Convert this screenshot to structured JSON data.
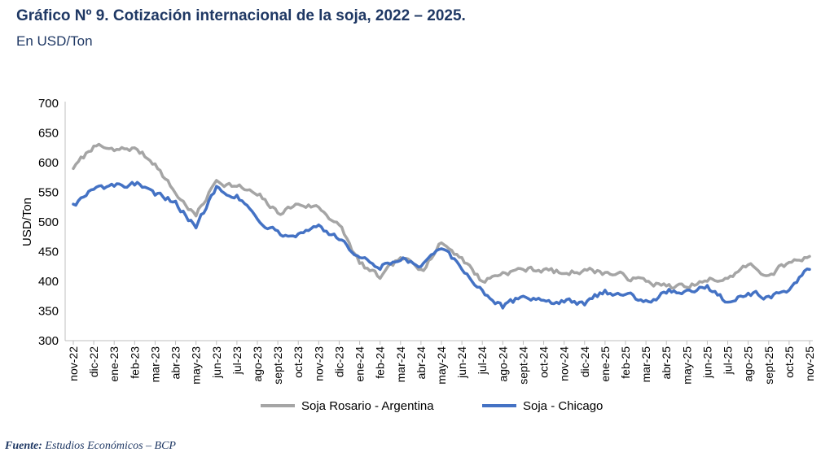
{
  "header": {
    "title": "Gráfico Nº 9. Cotización internacional de la soja, 2022 – 2025.",
    "subtitle": "En USD/Ton"
  },
  "source": {
    "label": "Fuente:",
    "text": "Estudios Económicos – BCP"
  },
  "colors": {
    "rosario": "#a5a5a5",
    "chicago": "#4472c4",
    "text": "#1f3864"
  },
  "chart_data": {
    "type": "line",
    "ylabel": "USD/Ton",
    "xlabel": "",
    "ylim": [
      300,
      700
    ],
    "yticks": [
      300,
      350,
      400,
      450,
      500,
      550,
      600,
      650,
      700
    ],
    "categories": [
      "nov-22",
      "dic-22",
      "ene-23",
      "feb-23",
      "mar-23",
      "abr-23",
      "may-23",
      "jun-23",
      "jul-23",
      "ago-23",
      "sept-23",
      "oct-23",
      "nov-23",
      "dic-23",
      "ene-24",
      "feb-24",
      "mar-24",
      "abr-24",
      "may-24",
      "jun-24",
      "jul-24",
      "ago-24",
      "sept-24",
      "oct-24",
      "nov-24",
      "dic-24",
      "ene-25",
      "feb-25",
      "mar-25",
      "abr-25",
      "may-25",
      "jun-25",
      "jul-25",
      "ago-25",
      "sept-25",
      "oct-25",
      "nov-25"
    ],
    "series": [
      {
        "name": "Soja Rosario - Argentina",
        "color": "#a5a5a5",
        "values": [
          590,
          628,
          620,
          625,
          598,
          548,
          510,
          570,
          560,
          545,
          515,
          530,
          525,
          495,
          430,
          405,
          440,
          420,
          465,
          440,
          400,
          415,
          420,
          420,
          413,
          420,
          415,
          408,
          400,
          392,
          390,
          400,
          405,
          428,
          410,
          432,
          442
        ]
      },
      {
        "name": "Soja - Chicago",
        "color": "#4472c4",
        "values": [
          530,
          555,
          560,
          562,
          545,
          535,
          490,
          560,
          545,
          505,
          485,
          480,
          495,
          470,
          440,
          420,
          435,
          425,
          455,
          420,
          385,
          355,
          375,
          368,
          365,
          360,
          385,
          378,
          368,
          380,
          385,
          393,
          365,
          380,
          375,
          385,
          420
        ]
      }
    ],
    "legend": {
      "position": "bottom"
    }
  }
}
